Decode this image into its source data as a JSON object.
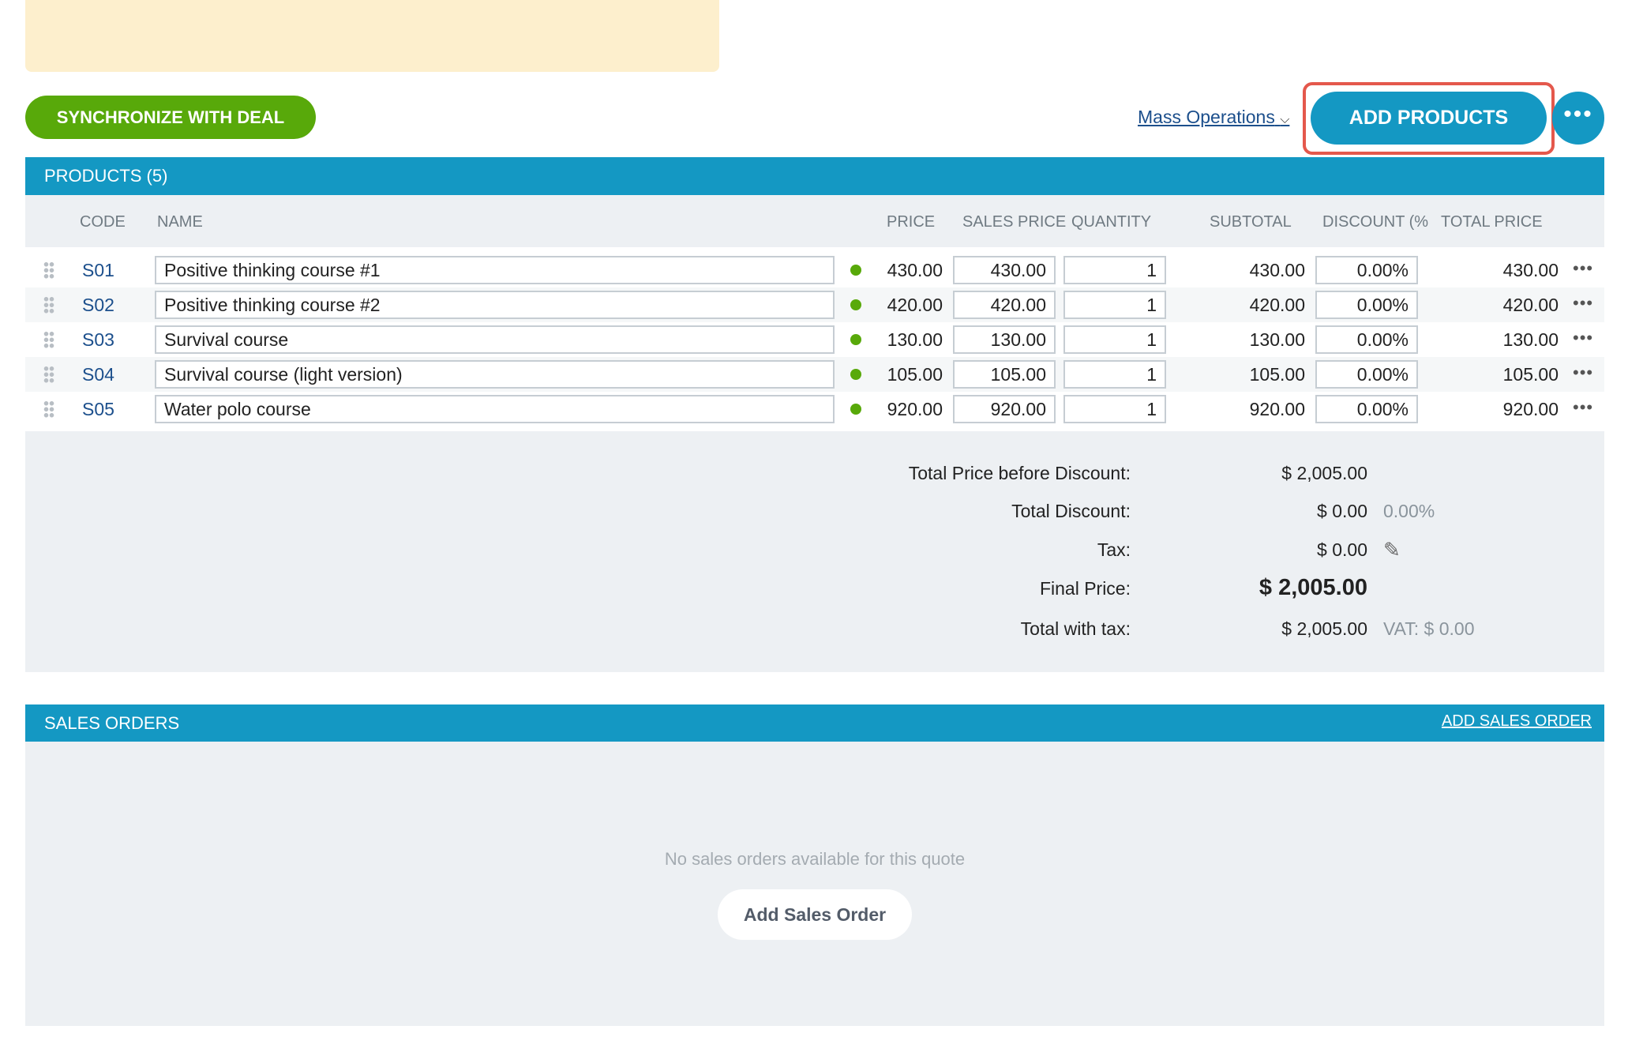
{
  "actions": {
    "sync": "SYNCHRONIZE WITH DEAL",
    "mass_operations": "Mass Operations",
    "add_products": "ADD PRODUCTS"
  },
  "products": {
    "title": "PRODUCTS (5)",
    "columns": [
      "CODE",
      "NAME",
      "PRICE",
      "SALES PRICE",
      "QUANTITY",
      "SUBTOTAL",
      "DISCOUNT (%",
      "TOTAL PRICE"
    ],
    "rows": [
      {
        "code": "S01",
        "name": "Positive thinking course #1",
        "price": "430.00",
        "sales_price": "430.00",
        "quantity": "1",
        "subtotal": "430.00",
        "discount": "0.00%",
        "total": "430.00"
      },
      {
        "code": "S02",
        "name": "Positive thinking course #2",
        "price": "420.00",
        "sales_price": "420.00",
        "quantity": "1",
        "subtotal": "420.00",
        "discount": "0.00%",
        "total": "420.00"
      },
      {
        "code": "S03",
        "name": "Survival course",
        "price": "130.00",
        "sales_price": "130.00",
        "quantity": "1",
        "subtotal": "130.00",
        "discount": "0.00%",
        "total": "130.00"
      },
      {
        "code": "S04",
        "name": "Survival course (light version)",
        "price": "105.00",
        "sales_price": "105.00",
        "quantity": "1",
        "subtotal": "105.00",
        "discount": "0.00%",
        "total": "105.00"
      },
      {
        "code": "S05",
        "name": "Water polo course",
        "price": "920.00",
        "sales_price": "920.00",
        "quantity": "1",
        "subtotal": "920.00",
        "discount": "0.00%",
        "total": "920.00"
      }
    ],
    "summary": [
      {
        "label": "Total Price before Discount:",
        "value": "$ 2,005.00"
      },
      {
        "label": "Total Discount:",
        "value": "$ 0.00",
        "extra": "0.00%"
      },
      {
        "label": "Tax:",
        "value": "$ 0.00"
      },
      {
        "label": "Final Price:",
        "value": "$ 2,005.00"
      },
      {
        "label": "Total with tax:",
        "value": "$ 2,005.00",
        "extra": "VAT: $ 0.00"
      }
    ]
  },
  "sales_orders": {
    "title": "SALES ORDERS",
    "add_link": "ADD SALES ORDER",
    "empty": "No sales orders available for this quote",
    "add_button": "Add Sales Order"
  }
}
